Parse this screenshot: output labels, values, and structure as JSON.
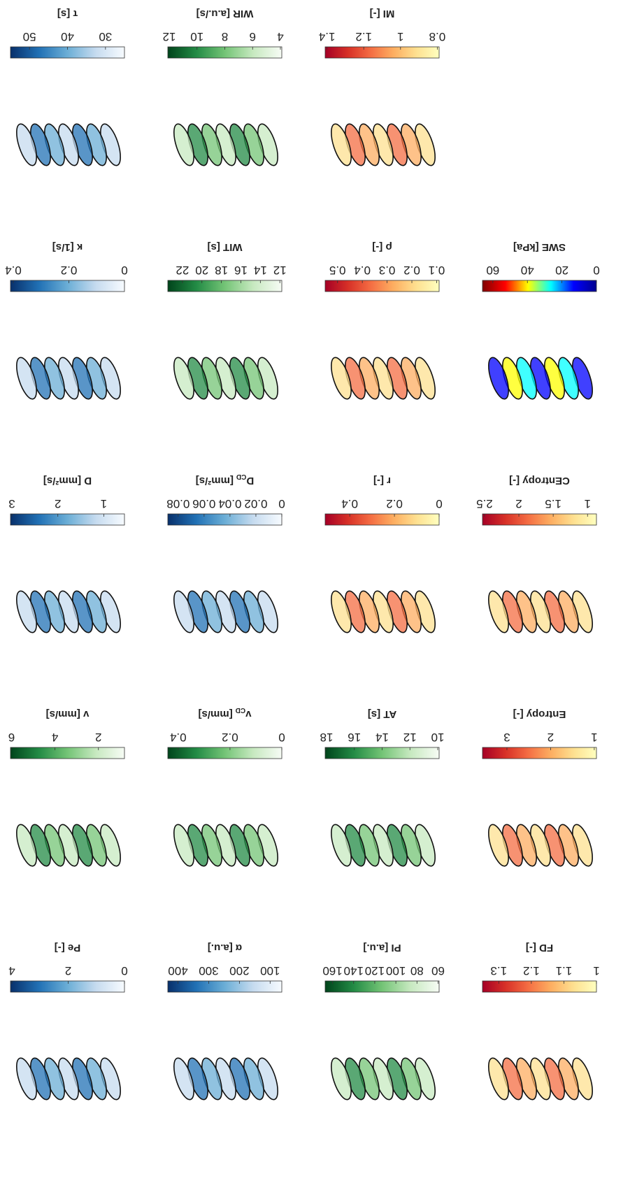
{
  "panels": [
    [
      {
        "label": "FD [-]",
        "lim": [
          1,
          1.35
        ],
        "ticks": [
          1,
          1.1,
          1.2,
          1.3
        ],
        "colormap": "redyellow"
      },
      {
        "label": "PI [a.u.]",
        "lim": [
          59,
          167
        ],
        "ticks": [
          60,
          80,
          100,
          120,
          140,
          160
        ],
        "colormap": "greens"
      },
      {
        "label": "α [a.u.]",
        "lim": [
          62,
          433
        ],
        "ticks": [
          100,
          200,
          300,
          400
        ],
        "colormap": "blues"
      },
      {
        "label": "Pe [-]",
        "lim": [
          0,
          4.05
        ],
        "ticks": [
          0,
          2,
          4
        ],
        "colormap": "blues"
      }
    ],
    [
      {
        "label": "Entropy [-]",
        "lim": [
          0.95,
          3.56
        ],
        "ticks": [
          1,
          2,
          3
        ],
        "colormap": "redyellow"
      },
      {
        "label": "AT [s]",
        "lim": [
          9.9,
          18.1
        ],
        "ticks": [
          10,
          12,
          14,
          16,
          18
        ],
        "colormap": "greens"
      },
      {
        "label": "v",
        "subscript": "CD",
        "unit": "[mm/s]",
        "lim": [
          0,
          0.44
        ],
        "ticks": [
          0,
          0.2,
          0.4
        ],
        "colormap": "greens"
      },
      {
        "label": "v [mm/s]",
        "lim": [
          0.8,
          6.05
        ],
        "ticks": [
          2,
          4,
          6
        ],
        "colormap": "greens"
      }
    ],
    [
      {
        "label": "CEntropy [-]",
        "lim": [
          0.87,
          2.53
        ],
        "ticks": [
          1,
          1.5,
          2,
          2.5
        ],
        "colormap": "redyellow"
      },
      {
        "label": "r [-]",
        "lim": [
          0,
          0.51
        ],
        "ticks": [
          0,
          0.2,
          0.4
        ],
        "colormap": "redyellow"
      },
      {
        "label": "D",
        "subscript": "CD",
        "unit": "[mm²/s]",
        "lim": [
          0,
          0.088
        ],
        "ticks": [
          0,
          0.02,
          0.04,
          0.06,
          0.08
        ],
        "colormap": "blues"
      },
      {
        "label": "D [mm²/s]",
        "lim": [
          0.55,
          3.03
        ],
        "ticks": [
          1,
          2,
          3
        ],
        "colormap": "blues"
      }
    ],
    [
      {
        "label": "SWE [kPa]",
        "lim": [
          0,
          66
        ],
        "ticks": [
          0,
          20,
          40,
          60
        ],
        "colormap": "jet"
      },
      {
        "label": "ρ [-]",
        "lim": [
          0.09,
          0.55
        ],
        "ticks": [
          0.1,
          0.2,
          0.3,
          0.4,
          0.5
        ],
        "colormap": "redyellow"
      },
      {
        "label": "WIT [s]",
        "lim": [
          11.8,
          23.5
        ],
        "ticks": [
          12,
          14,
          16,
          18,
          20,
          22
        ],
        "colormap": "greens"
      },
      {
        "label": "κ [1/s]",
        "lim": [
          0,
          0.41
        ],
        "ticks": [
          0,
          0.2,
          0.4
        ],
        "colormap": "blues"
      }
    ],
    [
      null,
      {
        "label": "MI [-]",
        "lim": [
          0.79,
          1.41
        ],
        "ticks": [
          0.8,
          1,
          1.2,
          1.4
        ],
        "colormap": "redyellow"
      },
      {
        "label": "WIR [a.u./s]",
        "lim": [
          3.9,
          12.1
        ],
        "ticks": [
          4,
          6,
          8,
          10,
          12
        ],
        "colormap": "greens"
      },
      {
        "label": "τ [s]",
        "lim": [
          25,
          55
        ],
        "ticks": [
          30,
          40,
          50
        ],
        "colormap": "blues"
      }
    ]
  ]
}
